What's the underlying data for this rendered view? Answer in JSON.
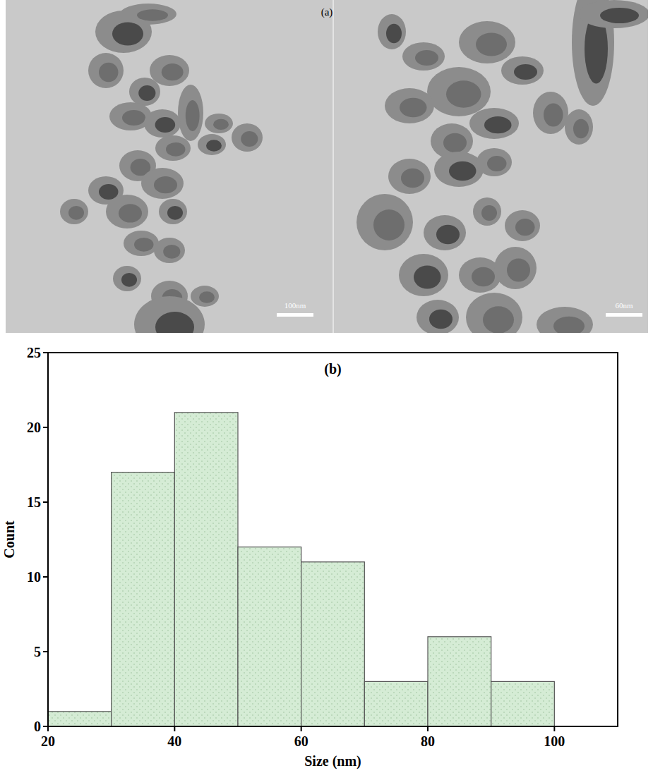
{
  "images": {
    "label": "(a)",
    "scale_bars": [
      "100nm",
      "60nm"
    ]
  },
  "chart_data": {
    "type": "histogram",
    "title": "(b)",
    "x_label": "Size (nm)",
    "y_label": "Count",
    "bins": [
      20,
      30,
      40,
      50,
      60,
      70,
      80,
      90,
      100
    ],
    "values": [
      1,
      17,
      21,
      12,
      11,
      3,
      6,
      3
    ],
    "color": "#d5ecd5",
    "xlim": [
      20,
      110
    ],
    "ylim": [
      0,
      25
    ],
    "xticks": [
      20,
      40,
      60,
      80,
      100
    ],
    "yticks": [
      0,
      5,
      10,
      15,
      20,
      25
    ],
    "grid": false
  }
}
